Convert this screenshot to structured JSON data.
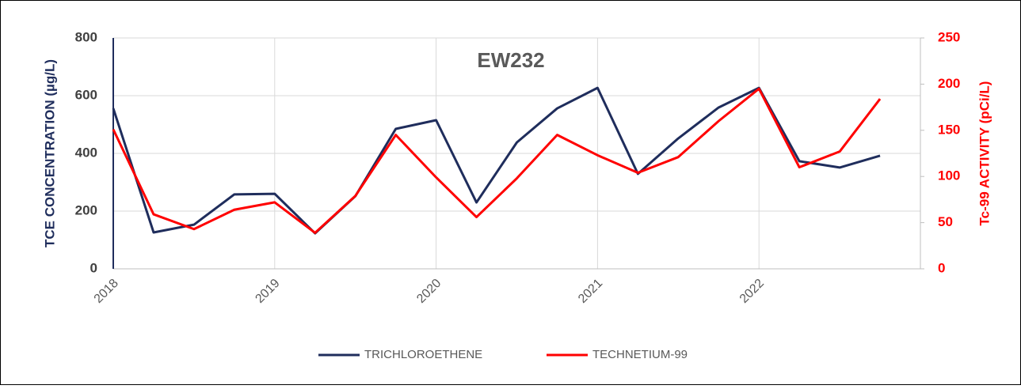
{
  "chart_data": {
    "type": "line",
    "title": "EW232",
    "y_label": "TCE CONCENTRATION (µg/L)",
    "y2_label": "Tc-99 ACTIVITY (pCi/L)",
    "x": [
      2018,
      2018.25,
      2018.5,
      2018.75,
      2019,
      2019.25,
      2019.5,
      2019.75,
      2020,
      2020.25,
      2020.5,
      2020.75,
      2021,
      2021.25,
      2021.5,
      2021.75,
      2022,
      2022.25,
      2022.5,
      2022.75
    ],
    "xlim": [
      2018,
      2023
    ],
    "xticks": [
      2018,
      2019,
      2020,
      2021,
      2022
    ],
    "ylim": [
      0,
      800
    ],
    "yticks": [
      0,
      200,
      400,
      600,
      800
    ],
    "y2lim": [
      0,
      250
    ],
    "y2ticks": [
      0,
      50,
      100,
      150,
      200,
      250
    ],
    "grid": true,
    "legend": "bottom",
    "series": [
      {
        "name": "TRICHLOROETHENE",
        "color": "#1f2d5c",
        "values": [
          556,
          126,
          153,
          258,
          260,
          123,
          252,
          485,
          515,
          230,
          438,
          556,
          627,
          329,
          452,
          559,
          627,
          373,
          351,
          392
        ]
      },
      {
        "name": "TECHNETIUM-99",
        "color": "#ff0000",
        "axis": "y2",
        "values": [
          151,
          59,
          43,
          64,
          72,
          39,
          79,
          145,
          99,
          56,
          98,
          145,
          123,
          104,
          121,
          160,
          195,
          110,
          127,
          184
        ]
      }
    ]
  }
}
